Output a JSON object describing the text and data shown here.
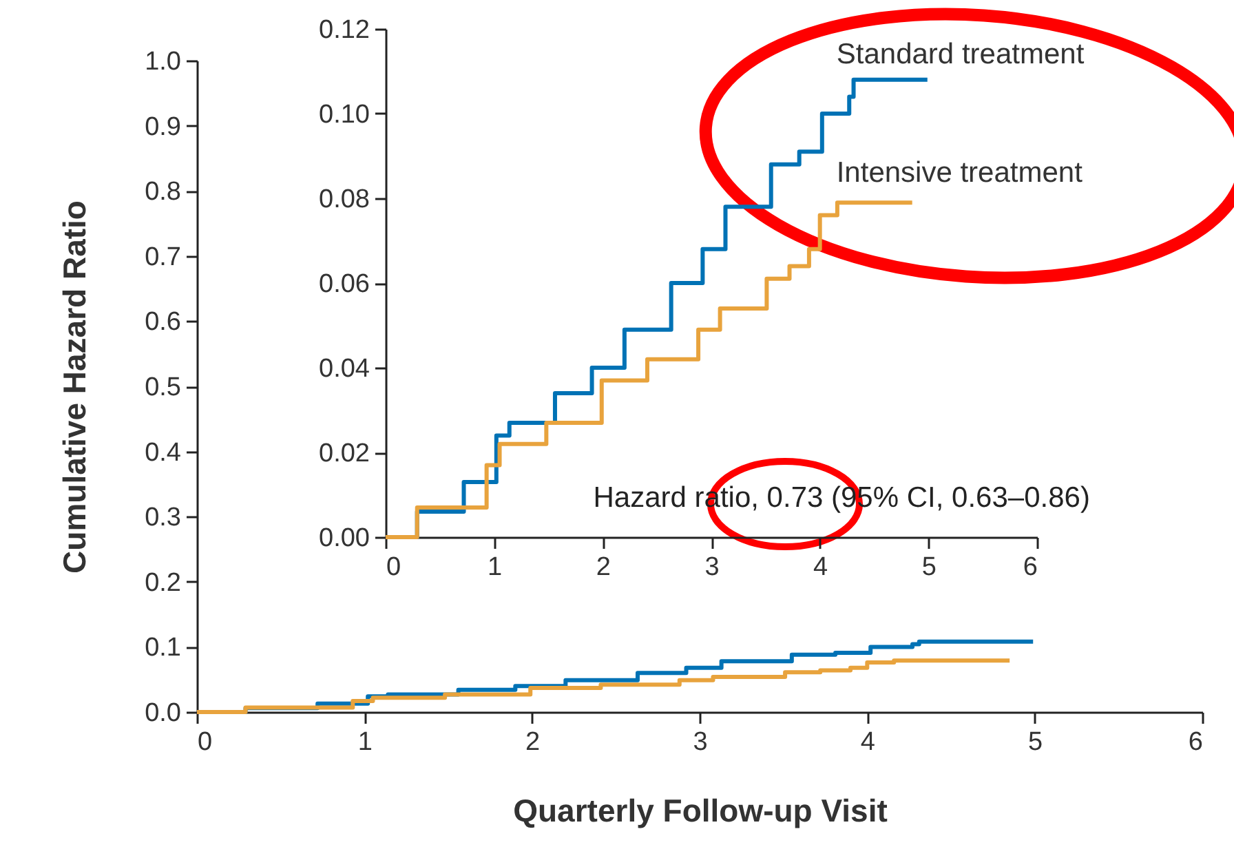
{
  "chart_data": [
    {
      "type": "step",
      "xlabel": "Quarterly Follow-up Visit",
      "ylabel": "Cumulative Hazard Ratio",
      "xlim": [
        0,
        6
      ],
      "ylim": [
        0,
        1
      ],
      "xticks": [
        0,
        1,
        2,
        3,
        4,
        5,
        6
      ],
      "yticks": [
        {
          "value": 0,
          "label": "0.0"
        },
        0.1,
        0.2,
        0.3,
        0.4,
        0.5,
        0.6,
        0.7,
        0.8,
        0.9,
        {
          "value": 1,
          "label": "1.0"
        }
      ],
      "grid": false,
      "series": [
        {
          "color": "#0072b5",
          "x": [
            0,
            0.29,
            0.72,
            1.02,
            1.14,
            1.56,
            1.9,
            2.2,
            2.63,
            2.92,
            3.13,
            3.55,
            3.81,
            4.02,
            4.27,
            4.31,
            4.99
          ],
          "values": [
            0,
            0.006,
            0.013,
            0.024,
            0.027,
            0.034,
            0.04,
            0.049,
            0.06,
            0.068,
            0.078,
            0.088,
            0.091,
            0.1,
            0.104,
            0.108,
            0.108
          ]
        },
        {
          "color": "#e8a33d",
          "x": [
            0,
            0.29,
            0.93,
            1.05,
            1.48,
            1.99,
            2.41,
            2.88,
            3.08,
            3.51,
            3.72,
            3.9,
            4.0,
            4.16,
            4.85
          ],
          "values": [
            0,
            0.007,
            0.017,
            0.022,
            0.027,
            0.037,
            0.042,
            0.049,
            0.054,
            0.061,
            0.064,
            0.068,
            0.076,
            0.079,
            0.079
          ]
        }
      ]
    },
    {
      "type": "step",
      "xlim": [
        0,
        6
      ],
      "ylim": [
        0,
        0.12
      ],
      "xticks": [
        0,
        1,
        2,
        3,
        4,
        5,
        6
      ],
      "yticks": [
        {
          "value": 0,
          "label": "0.00"
        },
        0.02,
        0.04,
        0.06,
        0.08,
        {
          "value": 0.1,
          "label": "0.10"
        },
        0.12
      ],
      "grid": false,
      "annotations": [
        "Hazard ratio, 0.73 (95% CI, 0.63–0.86)"
      ],
      "series": [
        {
          "name": "Standard treatment",
          "color": "#0072b5",
          "x": [
            0,
            0.29,
            0.72,
            1.02,
            1.14,
            1.56,
            1.9,
            2.2,
            2.63,
            2.92,
            3.13,
            3.55,
            3.81,
            4.02,
            4.27,
            4.31,
            4.99
          ],
          "values": [
            0,
            0.006,
            0.013,
            0.024,
            0.027,
            0.034,
            0.04,
            0.049,
            0.06,
            0.068,
            0.078,
            0.088,
            0.091,
            0.1,
            0.104,
            0.108,
            0.108
          ]
        },
        {
          "name": "Intensive treatment",
          "color": "#e8a33d",
          "x": [
            0,
            0.29,
            0.93,
            1.05,
            1.48,
            1.99,
            2.41,
            2.88,
            3.08,
            3.51,
            3.72,
            3.9,
            4.0,
            4.16,
            4.85
          ],
          "values": [
            0,
            0.007,
            0.017,
            0.022,
            0.027,
            0.037,
            0.042,
            0.049,
            0.054,
            0.061,
            0.064,
            0.068,
            0.076,
            0.079,
            0.079
          ]
        }
      ]
    }
  ]
}
